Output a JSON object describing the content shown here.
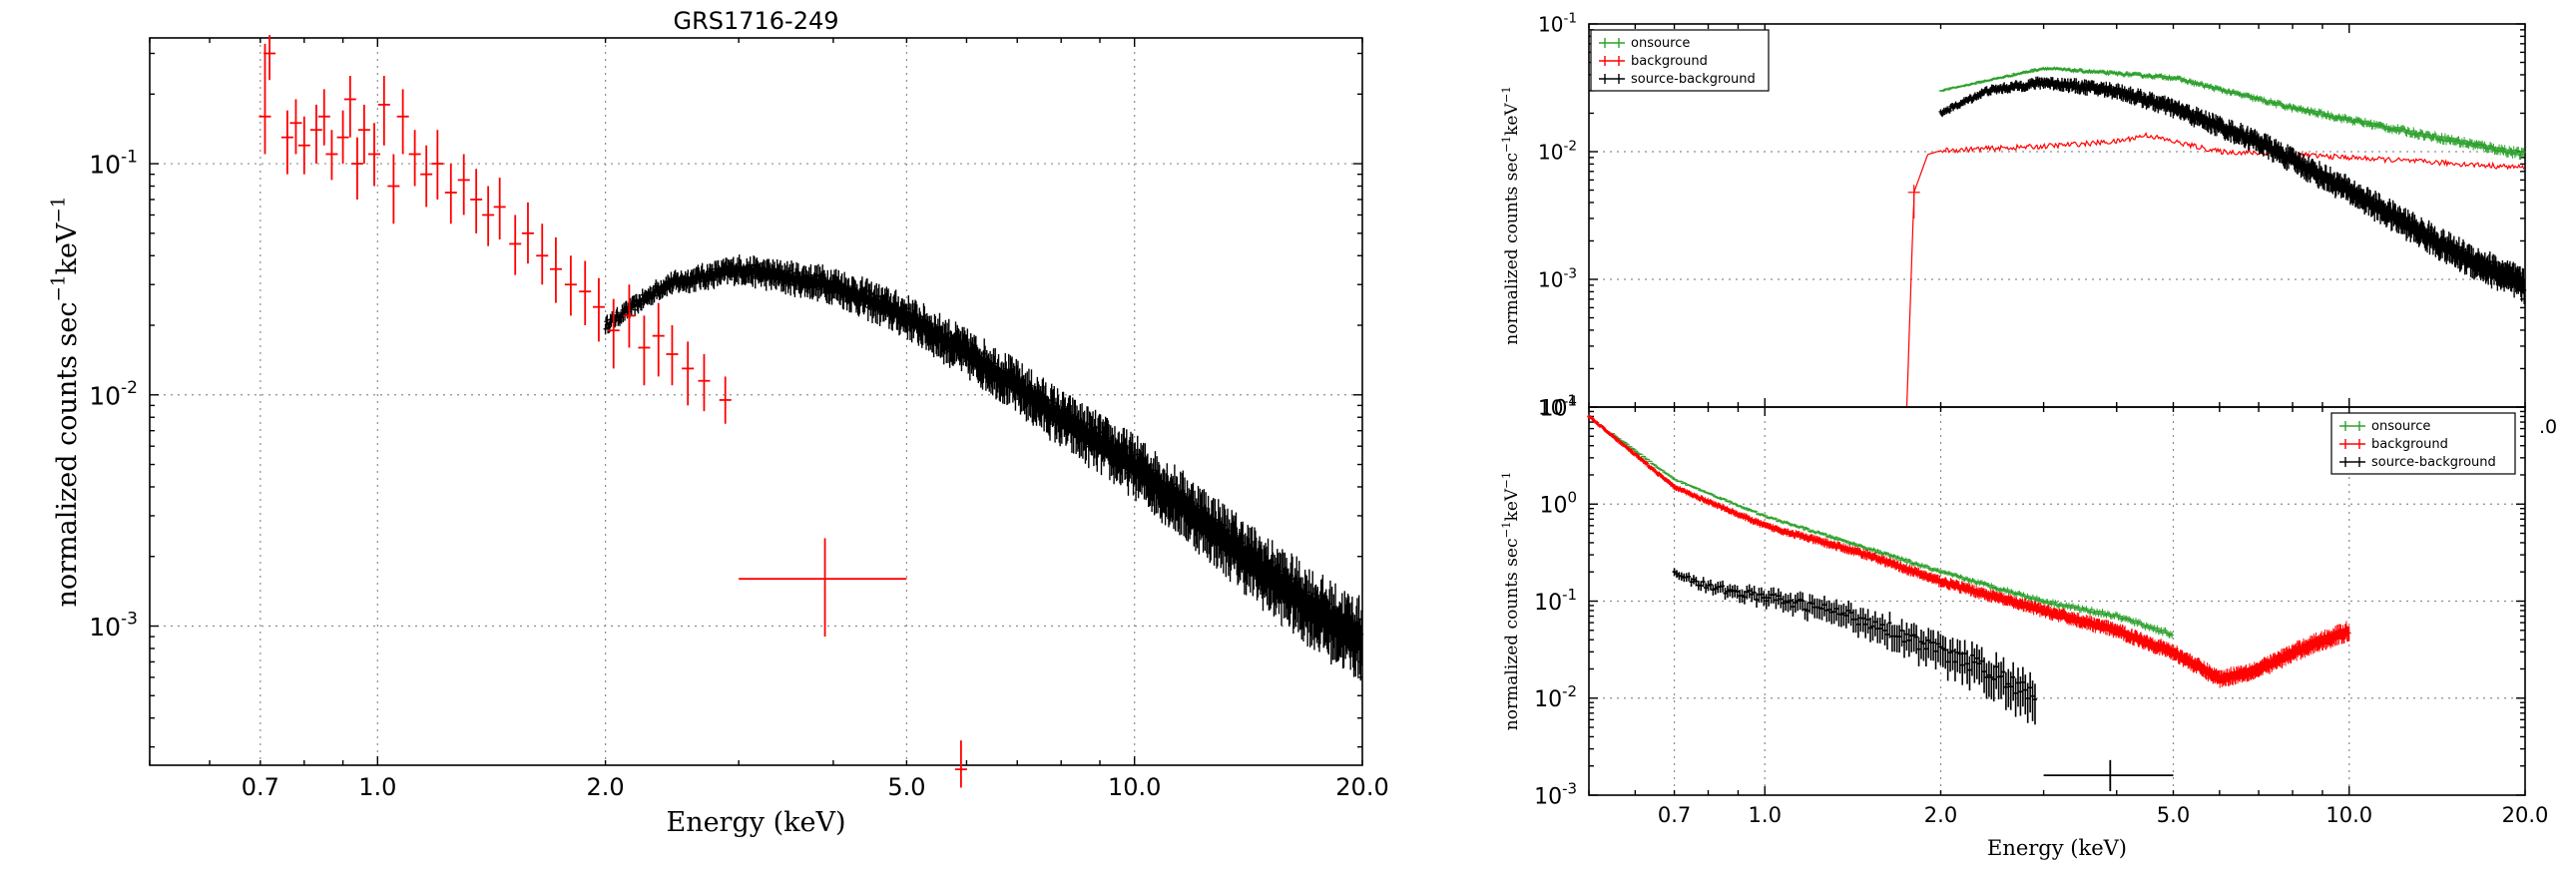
{
  "chart_data": [
    {
      "type": "scatter",
      "title": "GRS1716-249",
      "xlabel": "Energy (keV)",
      "ylabel": "normalized counts sec",
      "ylabel_sup1": "−1",
      "ylabel_mid": "keV",
      "ylabel_sup2": "−1",
      "xscale": "log",
      "yscale": "log",
      "xlim": [
        0.5,
        20.0
      ],
      "ylim": [
        0.00025,
        0.35
      ],
      "grid": true,
      "x_ticks": [
        {
          "value": 0.7,
          "label": "0.7"
        },
        {
          "value": 1.0,
          "label": "1.0"
        },
        {
          "value": 2.0,
          "label": "2.0"
        },
        {
          "value": 5.0,
          "label": "5.0"
        },
        {
          "value": 10.0,
          "label": "10.0"
        },
        {
          "value": 20.0,
          "label": "20.0"
        }
      ],
      "y_ticks": [
        {
          "value": 0.1,
          "base": "10",
          "exp": "-1"
        },
        {
          "value": 0.01,
          "base": "10",
          "exp": "-2"
        },
        {
          "value": 0.001,
          "base": "10",
          "exp": "-3"
        }
      ],
      "series": [
        {
          "color": "#ff0000",
          "points": [
            {
              "x": 0.71,
              "y": 0.16,
              "ylo": 0.11,
              "yhi": 0.33
            },
            {
              "x": 0.72,
              "y": 0.3,
              "ylo": 0.23,
              "yhi": 0.36
            },
            {
              "x": 0.76,
              "y": 0.13,
              "ylo": 0.09,
              "yhi": 0.17
            },
            {
              "x": 0.78,
              "y": 0.15,
              "ylo": 0.11,
              "yhi": 0.19
            },
            {
              "x": 0.8,
              "y": 0.12,
              "ylo": 0.09,
              "yhi": 0.16
            },
            {
              "x": 0.83,
              "y": 0.14,
              "ylo": 0.1,
              "yhi": 0.18
            },
            {
              "x": 0.85,
              "y": 0.16,
              "ylo": 0.12,
              "yhi": 0.21
            },
            {
              "x": 0.87,
              "y": 0.11,
              "ylo": 0.085,
              "yhi": 0.14
            },
            {
              "x": 0.9,
              "y": 0.13,
              "ylo": 0.1,
              "yhi": 0.17
            },
            {
              "x": 0.92,
              "y": 0.19,
              "ylo": 0.13,
              "yhi": 0.24
            },
            {
              "x": 0.94,
              "y": 0.1,
              "ylo": 0.07,
              "yhi": 0.13
            },
            {
              "x": 0.96,
              "y": 0.14,
              "ylo": 0.1,
              "yhi": 0.18
            },
            {
              "x": 0.99,
              "y": 0.11,
              "ylo": 0.08,
              "yhi": 0.15
            },
            {
              "x": 1.02,
              "y": 0.18,
              "ylo": 0.12,
              "yhi": 0.24
            },
            {
              "x": 1.05,
              "y": 0.08,
              "ylo": 0.055,
              "yhi": 0.11
            },
            {
              "x": 1.08,
              "y": 0.16,
              "ylo": 0.11,
              "yhi": 0.21
            },
            {
              "x": 1.12,
              "y": 0.11,
              "ylo": 0.08,
              "yhi": 0.14
            },
            {
              "x": 1.16,
              "y": 0.09,
              "ylo": 0.065,
              "yhi": 0.12
            },
            {
              "x": 1.2,
              "y": 0.1,
              "ylo": 0.07,
              "yhi": 0.14
            },
            {
              "x": 1.25,
              "y": 0.075,
              "ylo": 0.055,
              "yhi": 0.1
            },
            {
              "x": 1.3,
              "y": 0.085,
              "ylo": 0.06,
              "yhi": 0.11
            },
            {
              "x": 1.35,
              "y": 0.07,
              "ylo": 0.05,
              "yhi": 0.095
            },
            {
              "x": 1.4,
              "y": 0.06,
              "ylo": 0.044,
              "yhi": 0.08
            },
            {
              "x": 1.45,
              "y": 0.065,
              "ylo": 0.047,
              "yhi": 0.087
            },
            {
              "x": 1.52,
              "y": 0.045,
              "ylo": 0.033,
              "yhi": 0.06
            },
            {
              "x": 1.58,
              "y": 0.05,
              "ylo": 0.037,
              "yhi": 0.068
            },
            {
              "x": 1.65,
              "y": 0.04,
              "ylo": 0.03,
              "yhi": 0.055
            },
            {
              "x": 1.72,
              "y": 0.035,
              "ylo": 0.025,
              "yhi": 0.048
            },
            {
              "x": 1.8,
              "y": 0.03,
              "ylo": 0.022,
              "yhi": 0.04
            },
            {
              "x": 1.88,
              "y": 0.028,
              "ylo": 0.02,
              "yhi": 0.038
            },
            {
              "x": 1.96,
              "y": 0.024,
              "ylo": 0.017,
              "yhi": 0.032
            },
            {
              "x": 2.05,
              "y": 0.019,
              "ylo": 0.013,
              "yhi": 0.026
            },
            {
              "x": 2.15,
              "y": 0.022,
              "ylo": 0.016,
              "yhi": 0.03
            },
            {
              "x": 2.25,
              "y": 0.016,
              "ylo": 0.011,
              "yhi": 0.022
            },
            {
              "x": 2.35,
              "y": 0.018,
              "ylo": 0.012,
              "yhi": 0.025
            },
            {
              "x": 2.45,
              "y": 0.015,
              "ylo": 0.011,
              "yhi": 0.02
            },
            {
              "x": 2.57,
              "y": 0.013,
              "ylo": 0.009,
              "yhi": 0.017
            },
            {
              "x": 2.7,
              "y": 0.0115,
              "ylo": 0.0085,
              "yhi": 0.015
            },
            {
              "x": 2.88,
              "y": 0.0095,
              "ylo": 0.0075,
              "yhi": 0.012
            },
            {
              "x": 3.9,
              "y": 0.0016,
              "ylo": 0.0009,
              "yhi": 0.0024,
              "xlo": 3.0,
              "xhi": 5.0
            },
            {
              "x": 5.9,
              "y": 0.00024,
              "ylo": 0.0002,
              "yhi": 0.00032
            }
          ]
        },
        {
          "color": "#000000",
          "model": "powerlaw",
          "x_from": 2.0,
          "x_to": 20.0,
          "anchors": [
            [
              2.0,
              0.02
            ],
            [
              2.4,
              0.03
            ],
            [
              3.0,
              0.035
            ],
            [
              4.0,
              0.03
            ],
            [
              5.0,
              0.022
            ],
            [
              6.5,
              0.013
            ],
            [
              8.0,
              0.008
            ],
            [
              10.0,
              0.005
            ],
            [
              12.5,
              0.0028
            ],
            [
              15.0,
              0.0017
            ],
            [
              18.0,
              0.0011
            ],
            [
              20.0,
              0.0009
            ]
          ]
        }
      ]
    },
    {
      "type": "scatter",
      "xscale": "log",
      "yscale": "log",
      "ylabel": "normalized counts sec",
      "ylabel_sup1": "−1",
      "ylabel_mid": "keV",
      "ylabel_sup2": "−1",
      "xlim": [
        0.5,
        20.0
      ],
      "ylim": [
        0.0001,
        0.1
      ],
      "grid": true,
      "legend": "top-left",
      "y_ticks": [
        {
          "value": 0.1,
          "base": "10",
          "exp": "-1"
        },
        {
          "value": 0.01,
          "base": "10",
          "exp": "-2"
        },
        {
          "value": 0.001,
          "base": "10",
          "exp": "-3"
        },
        {
          "value": 0.0001,
          "base": "10",
          "exp": "-4"
        }
      ],
      "x_ticks_visible": [
        {
          "value": 20.0,
          "label": ".0"
        }
      ],
      "series": [
        {
          "name": "onsource",
          "color": "#2ca02c",
          "anchors": [
            [
              2.0,
              0.03
            ],
            [
              3.0,
              0.045
            ],
            [
              5.0,
              0.038
            ],
            [
              8.0,
              0.022
            ],
            [
              12.0,
              0.015
            ],
            [
              20.0,
              0.0095
            ]
          ]
        },
        {
          "name": "background",
          "color": "#ff0000",
          "anchors": [
            [
              1.75,
              0.0001
            ],
            [
              1.8,
              0.0048
            ],
            [
              1.9,
              0.0095
            ],
            [
              2.0,
              0.0102
            ],
            [
              3.0,
              0.011
            ],
            [
              4.0,
              0.012
            ],
            [
              4.5,
              0.0135
            ],
            [
              5.0,
              0.012
            ],
            [
              6.0,
              0.01
            ],
            [
              8.0,
              0.0095
            ],
            [
              10.0,
              0.009
            ],
            [
              20.0,
              0.0075
            ]
          ]
        },
        {
          "name": "source-background",
          "color": "#000000",
          "anchors": [
            [
              2.0,
              0.02
            ],
            [
              2.4,
              0.03
            ],
            [
              3.0,
              0.035
            ],
            [
              4.0,
              0.03
            ],
            [
              5.0,
              0.022
            ],
            [
              7.0,
              0.012
            ],
            [
              10.0,
              0.005
            ],
            [
              15.0,
              0.0017
            ],
            [
              20.0,
              0.0009
            ]
          ]
        }
      ]
    },
    {
      "type": "scatter",
      "xscale": "log",
      "yscale": "log",
      "xlabel": "Energy (keV)",
      "ylabel": "normalized counts sec",
      "ylabel_sup1": "−1",
      "ylabel_mid": "keV",
      "ylabel_sup2": "−1",
      "xlim": [
        0.5,
        20.0
      ],
      "ylim": [
        0.001,
        10.0
      ],
      "grid": true,
      "legend": "top-right",
      "x_ticks": [
        {
          "value": 0.7,
          "label": "0.7"
        },
        {
          "value": 1.0,
          "label": "1.0"
        },
        {
          "value": 2.0,
          "label": "2.0"
        },
        {
          "value": 5.0,
          "label": "5.0"
        },
        {
          "value": 10.0,
          "label": "10.0"
        },
        {
          "value": 20.0,
          "label": "20.0"
        }
      ],
      "y_ticks": [
        {
          "value": 10.0,
          "base": "10",
          "exp": "1"
        },
        {
          "value": 1.0,
          "base": "10",
          "exp": "0"
        },
        {
          "value": 0.1,
          "base": "10",
          "exp": "-1"
        },
        {
          "value": 0.01,
          "base": "10",
          "exp": "-2"
        },
        {
          "value": 0.001,
          "base": "10",
          "exp": "-3"
        }
      ],
      "series": [
        {
          "name": "onsource",
          "color": "#2ca02c",
          "anchors": [
            [
              0.5,
              8.0
            ],
            [
              0.7,
              1.8
            ],
            [
              1.0,
              0.75
            ],
            [
              1.5,
              0.35
            ],
            [
              2.0,
              0.2
            ],
            [
              3.0,
              0.1
            ],
            [
              4.0,
              0.07
            ],
            [
              5.0,
              0.045
            ]
          ]
        },
        {
          "name": "background",
          "color": "#ff0000",
          "anchors": [
            [
              0.5,
              8.0
            ],
            [
              0.7,
              1.5
            ],
            [
              1.0,
              0.6
            ],
            [
              1.5,
              0.3
            ],
            [
              2.0,
              0.16
            ],
            [
              3.0,
              0.08
            ],
            [
              4.0,
              0.05
            ],
            [
              5.0,
              0.03
            ],
            [
              6.0,
              0.016
            ],
            [
              7.0,
              0.02
            ],
            [
              8.5,
              0.035
            ],
            [
              10.0,
              0.05
            ]
          ]
        },
        {
          "name": "source-background",
          "color": "#000000",
          "anchors": [
            [
              0.7,
              0.2
            ],
            [
              0.8,
              0.14
            ],
            [
              1.0,
              0.11
            ],
            [
              1.3,
              0.08
            ],
            [
              1.6,
              0.055
            ],
            [
              2.0,
              0.03
            ],
            [
              2.4,
              0.02
            ],
            [
              2.9,
              0.01
            ]
          ]
        }
      ],
      "extra_point": {
        "x": 3.9,
        "y": 0.0016,
        "xlo": 3.0,
        "xhi": 5.0,
        "ylo": 0.0011,
        "yhi": 0.0023
      }
    }
  ]
}
